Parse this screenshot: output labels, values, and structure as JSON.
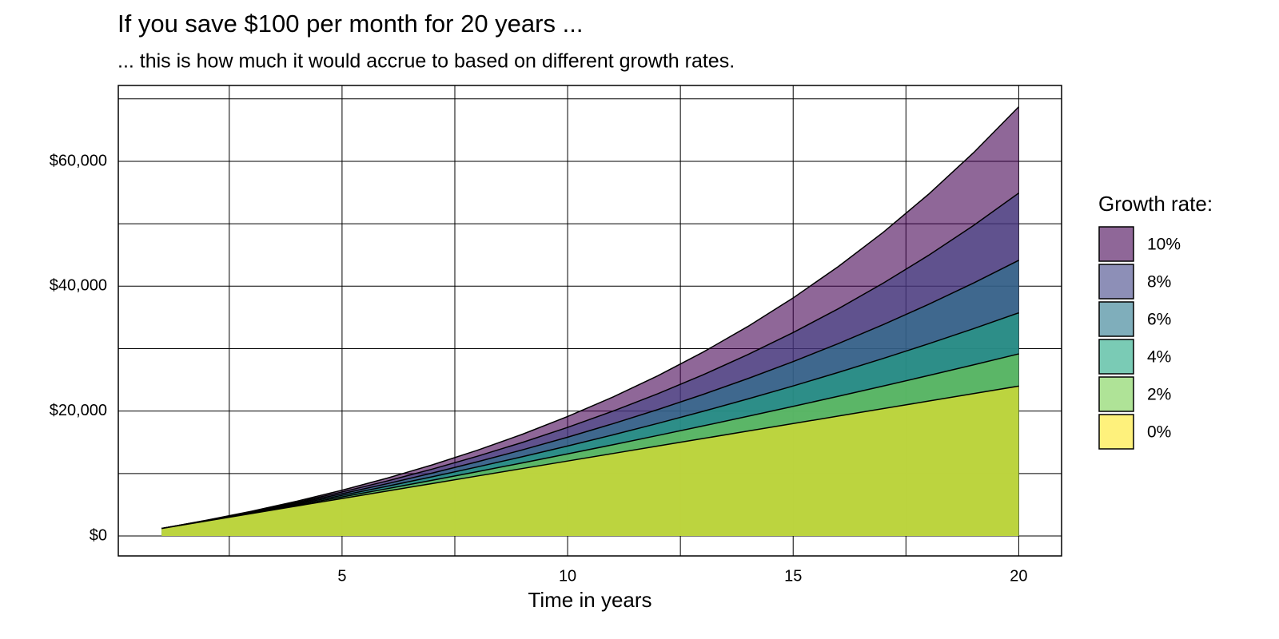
{
  "chart_data": {
    "type": "area",
    "title": "If you save $100 per month for 20 years ...",
    "subtitle": "... this is how much it would accrue to based on different growth rates.",
    "x_label": "Time in years",
    "legend_title": "Growth rate:",
    "legend": "right",
    "grid": true,
    "alpha": 0.6,
    "x": [
      1,
      2,
      3,
      4,
      5,
      6,
      7,
      8,
      9,
      10,
      11,
      12,
      13,
      14,
      15,
      16,
      17,
      18,
      19,
      20
    ],
    "xlim": [
      0.04,
      20.95
    ],
    "xticks": [
      5,
      10,
      15,
      20
    ],
    "xminorticks": [
      2.5,
      7.5,
      12.5,
      17.5
    ],
    "ylim": [
      -3200,
      72150
    ],
    "yticks": [
      {
        "value": 0,
        "label": "$0"
      },
      {
        "value": 20000,
        "label": "$20,000"
      },
      {
        "value": 40000,
        "label": "$40,000"
      },
      {
        "value": 60000,
        "label": "$60,000"
      }
    ],
    "yminorticks": [
      10000,
      30000,
      50000,
      70000
    ],
    "series": [
      {
        "name": "10%",
        "color": "#440154",
        "values": [
          1200,
          2520,
          3972,
          5569,
          7326,
          9259,
          11385,
          13723,
          16295,
          19125,
          22237,
          25661,
          29427,
          33570,
          38127,
          43140,
          48654,
          54719,
          61391,
          68730
        ]
      },
      {
        "name": "8%",
        "color": "#414487",
        "values": [
          1200,
          2496,
          3896,
          5407,
          7040,
          8803,
          10707,
          12764,
          14985,
          17384,
          19975,
          22773,
          25794,
          29058,
          32583,
          36389,
          40500,
          44940,
          49736,
          54914
        ]
      },
      {
        "name": "6%",
        "color": "#2a788e",
        "values": [
          1200,
          2472,
          3820,
          5250,
          6765,
          8370,
          10073,
          11877,
          13790,
          15817,
          17966,
          20244,
          22659,
          25218,
          27931,
          30807,
          33855,
          37087,
          40512,
          44143
        ]
      },
      {
        "name": "4%",
        "color": "#22a884",
        "values": [
          1200,
          2448,
          3746,
          5096,
          6500,
          7960,
          9478,
          11057,
          12699,
          14407,
          16184,
          18031,
          19952,
          21950,
          24028,
          26189,
          28437,
          30774,
          33205,
          35734
        ]
      },
      {
        "name": "2%",
        "color": "#7ad151",
        "values": [
          1200,
          2424,
          3672,
          4946,
          6245,
          7570,
          8921,
          10300,
          11706,
          13140,
          14602,
          16095,
          17616,
          19169,
          20752,
          22367,
          24015,
          25695,
          27409,
          29157
        ]
      },
      {
        "name": "0%",
        "color": "#fde725",
        "values": [
          1200,
          2400,
          3600,
          4800,
          6000,
          7200,
          8400,
          9600,
          10800,
          12000,
          13200,
          14400,
          15600,
          16800,
          18000,
          19200,
          20400,
          21600,
          22800,
          24000
        ]
      }
    ]
  }
}
